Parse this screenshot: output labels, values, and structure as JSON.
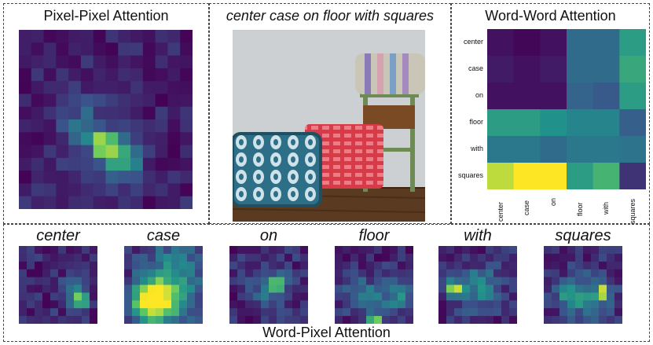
{
  "pixel_pixel": {
    "title": "Pixel-Pixel Attention"
  },
  "caption": {
    "text": "center case on floor with squares"
  },
  "word_word": {
    "title": "Word-Word Attention",
    "words": [
      "center",
      "case",
      "on",
      "floor",
      "with",
      "squares"
    ]
  },
  "word_pixel": {
    "title": "Word-Pixel Attention",
    "words": [
      "center",
      "case",
      "on",
      "floor",
      "with",
      "squares"
    ]
  },
  "colormap": [
    "#440154",
    "#3b528b",
    "#21918c",
    "#5ec962",
    "#fde725"
  ],
  "chart_data": {
    "type": "heatmap",
    "title": "Word-Word Attention",
    "x_categories": [
      "center",
      "case",
      "on",
      "floor",
      "with",
      "squares"
    ],
    "y_categories": [
      "center",
      "case",
      "on",
      "floor",
      "with",
      "squares"
    ],
    "values": [
      [
        0.05,
        0.02,
        0.05,
        0.35,
        0.35,
        0.55
      ],
      [
        0.08,
        0.05,
        0.08,
        0.35,
        0.35,
        0.6
      ],
      [
        0.05,
        0.05,
        0.05,
        0.32,
        0.28,
        0.55
      ],
      [
        0.55,
        0.55,
        0.5,
        0.45,
        0.45,
        0.3
      ],
      [
        0.4,
        0.4,
        0.35,
        0.4,
        0.4,
        0.38
      ],
      [
        0.9,
        1.0,
        1.0,
        0.55,
        0.65,
        0.15
      ]
    ]
  }
}
